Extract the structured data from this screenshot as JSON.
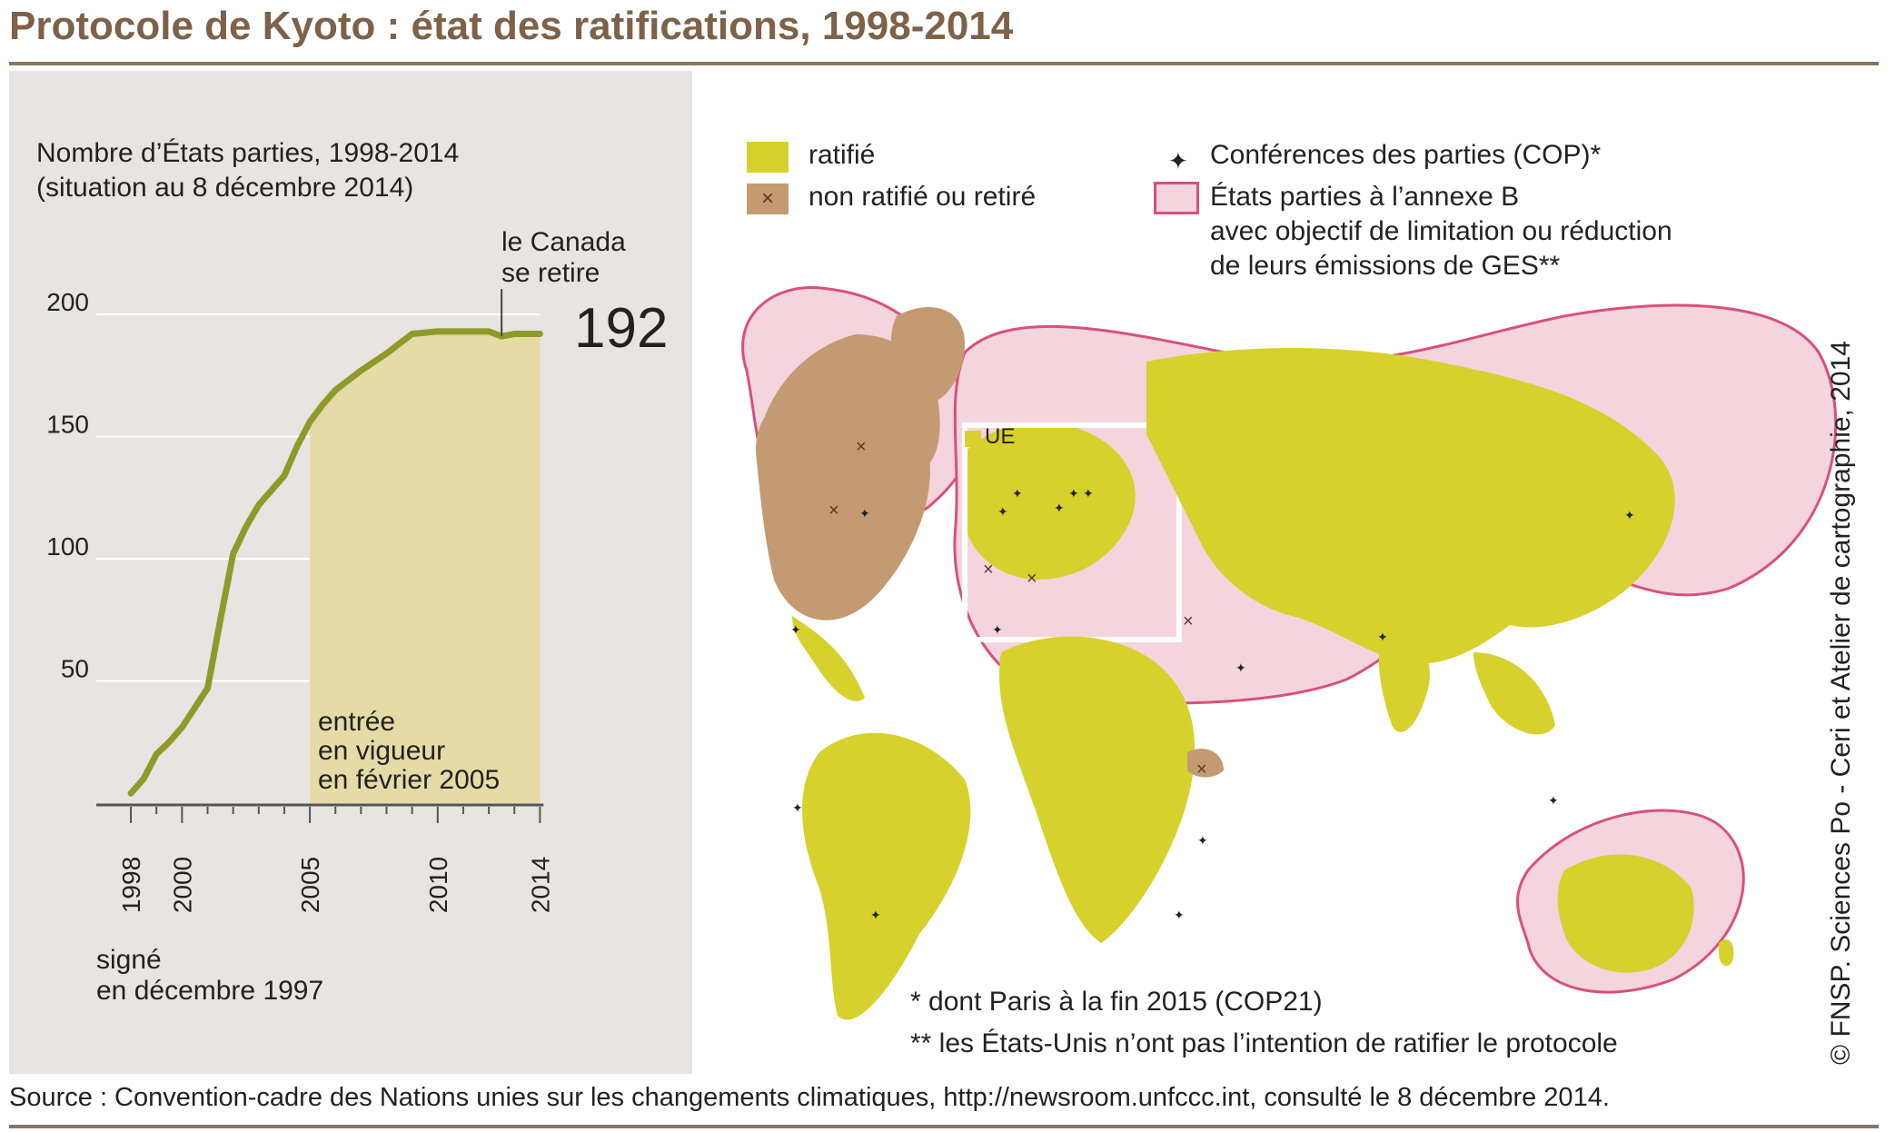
{
  "title": "Protocole de Kyoto : état des ratifications, 1998-2014",
  "chart": {
    "heading_line1": "Nombre d’États parties, 1998-2014",
    "heading_line2": "(situation au 8 décembre 2014)",
    "event_canada_line1": "le Canada",
    "event_canada_line2": "se retire",
    "final_value_label": "192",
    "note_force_line1": "entrée",
    "note_force_line2": "en vigueur",
    "note_force_line3": "en février 2005",
    "note_signed_line1": "signé",
    "note_signed_line2": "en décembre 1997"
  },
  "chart_data": {
    "type": "area",
    "title": "Nombre d’États parties, 1998-2014",
    "subtitle": "(situation au 8 décembre 2014)",
    "xlabel": "",
    "ylabel": "",
    "x": [
      1998.0,
      1998.5,
      1999.0,
      1999.5,
      2000.0,
      2000.5,
      2001.0,
      2001.5,
      2002.0,
      2002.5,
      2003.0,
      2003.5,
      2004.0,
      2004.5,
      2005.0,
      2005.5,
      2006.0,
      2007.0,
      2008.0,
      2009.0,
      2010.0,
      2011.0,
      2012.0,
      2012.5,
      2013.0,
      2014.0
    ],
    "values": [
      4,
      10,
      20,
      25,
      31,
      39,
      47,
      75,
      102,
      113,
      122,
      128,
      134,
      146,
      156,
      163,
      169,
      177,
      184,
      192,
      193,
      193,
      193,
      191,
      192,
      192
    ],
    "xlim": [
      1997.5,
      2014.2
    ],
    "ylim": [
      0,
      200
    ],
    "yticks": [
      50,
      100,
      150,
      200
    ],
    "xtick_labels": [
      "1998",
      "2000",
      "2005",
      "2010",
      "2014"
    ],
    "shaded_range": [
      2005,
      2014
    ]
  },
  "legend": {
    "ratified": "ratifié",
    "not_ratified": "non ratifié ou retiré",
    "cop": "Conférences des parties (COP)*",
    "annex_b_line1": "États parties à l’annexe B",
    "annex_b_line2": "avec objectif de limitation ou réduction",
    "annex_b_line3": "de leurs émissions de GES**"
  },
  "map": {
    "eu_label": "UE",
    "footnote1": "*  dont Paris à la fin 2015 (COP21)",
    "footnote2": "** les États-Unis n’ont pas l’intention de ratifier le protocole"
  },
  "credit": "© FNSP. Sciences Po - Ceri et Atelier de cartographie, 2014",
  "source": "Source : Convention-cadre des Nations unies sur les changements climatiques, http://newsroom.unfccc.int, consulté le 8 décembre 2014.",
  "colors": {
    "ratified": "#d6d12c",
    "not_ratified": "#c49a72",
    "annex_b_fill": "#f4d5dd",
    "annex_b_stroke": "#d9507a",
    "line": "#8f9a2a",
    "shade": "#e5dba7",
    "panel": "#e7e4e1",
    "title": "#7d6148"
  }
}
